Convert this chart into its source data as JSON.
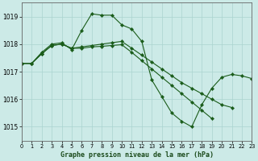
{
  "title": "Graphe pression niveau de la mer (hPa)",
  "background_color": "#cceae7",
  "grid_color": "#aad4d0",
  "line_color": "#1a5c1a",
  "xlim": [
    0,
    23
  ],
  "ylim": [
    1014.5,
    1019.5
  ],
  "yticks": [
    1015,
    1016,
    1017,
    1018,
    1019
  ],
  "xticks": [
    0,
    1,
    2,
    3,
    4,
    5,
    6,
    7,
    8,
    9,
    10,
    11,
    12,
    13,
    14,
    15,
    16,
    17,
    18,
    19,
    20,
    21,
    22,
    23
  ],
  "series": [
    {
      "x": [
        0,
        1,
        2,
        3,
        4,
        5,
        6,
        7,
        8,
        9,
        10,
        11,
        12,
        13,
        14,
        15,
        16,
        17,
        18,
        19,
        20,
        21,
        22,
        23
      ],
      "y": [
        1017.3,
        1017.3,
        1017.7,
        1018.0,
        1018.05,
        1017.8,
        1018.5,
        1019.1,
        1019.05,
        1019.05,
        1018.7,
        1018.55,
        1018.1,
        1016.7,
        1016.1,
        1015.5,
        1015.2,
        1015.0,
        1015.8,
        1016.4,
        1016.8,
        1016.9,
        1016.85,
        1016.75
      ]
    },
    {
      "x": [
        0,
        1,
        2,
        3,
        4,
        5,
        6,
        7,
        8,
        9,
        10,
        11,
        12,
        13,
        14,
        15,
        16,
        17,
        18,
        19,
        20,
        21,
        22,
        23
      ],
      "y": [
        1017.3,
        1017.3,
        1017.65,
        1017.95,
        1018.0,
        1017.85,
        1017.9,
        1017.95,
        1018.0,
        1018.05,
        1018.1,
        1017.85,
        1017.6,
        1017.35,
        1017.1,
        1016.85,
        1016.6,
        1016.4,
        1016.2,
        1016.0,
        1015.8,
        1015.7,
        null,
        null
      ]
    },
    {
      "x": [
        0,
        1,
        2,
        3,
        4,
        5,
        6,
        7,
        8,
        9,
        10,
        11,
        12,
        13,
        14,
        15,
        16,
        17,
        18,
        19,
        20,
        21,
        22,
        23
      ],
      "y": [
        1017.3,
        1017.3,
        1017.65,
        1017.95,
        1018.0,
        1017.85,
        1017.85,
        1017.9,
        1017.92,
        1017.95,
        1017.98,
        1017.7,
        1017.4,
        1017.1,
        1016.8,
        1016.5,
        1016.2,
        1015.9,
        1015.6,
        1015.3,
        null,
        null,
        null,
        null
      ]
    }
  ]
}
